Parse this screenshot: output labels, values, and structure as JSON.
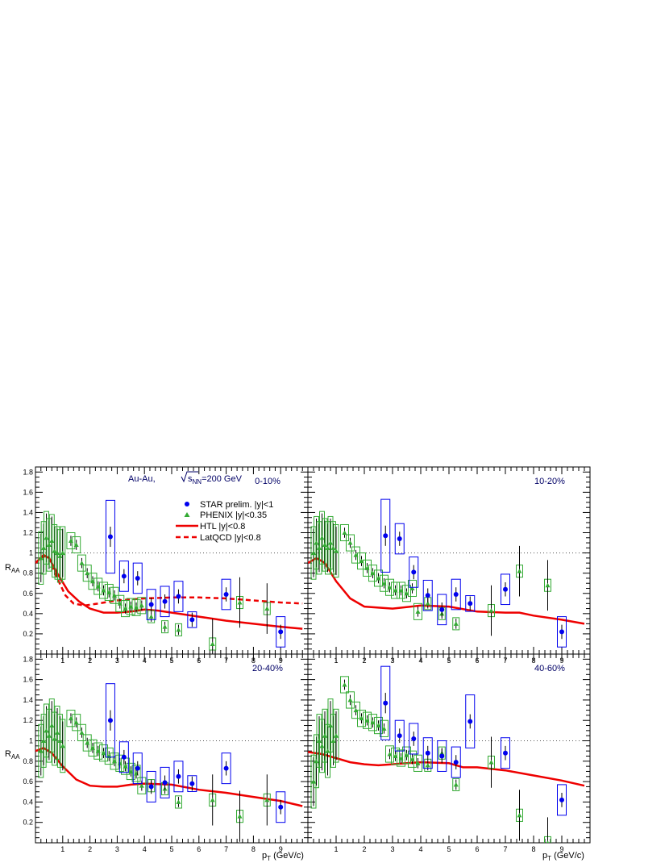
{
  "chart_data": {
    "type": "scatter",
    "title": "",
    "xlabel": "p",
    "xlabel_sub": "T",
    "xlabel_unit": " (GeV/c)",
    "ylabel": "R",
    "ylabel_sub": "AA",
    "xlim": [
      0,
      10
    ],
    "ylim": [
      0,
      1.85
    ],
    "x_ticks": [
      1,
      2,
      3,
      4,
      5,
      6,
      7,
      8,
      9
    ],
    "y_ticks": [
      0.2,
      0.4,
      0.6,
      0.8,
      1,
      1.2,
      1.4,
      1.6,
      1.8
    ],
    "reference_line": 1,
    "colors": {
      "star": "#0000ee",
      "phenix": "#33aa33",
      "theory": "#ee0000",
      "text": "#000066"
    },
    "annotation": {
      "system": "Au-Au, ",
      "sqrt": "s",
      "sqrt_sub": "NN",
      "energy": "=200 GeV"
    },
    "legend": {
      "placement": "top-right of first panel",
      "entries": [
        {
          "label": "STAR prelim. |y|<1",
          "marker": "circle"
        },
        {
          "label": "PHENIX |y|<0.35",
          "marker": "triangle"
        },
        {
          "label": "HTL |y|<0.8",
          "marker": "solid-line"
        },
        {
          "label": "LatQCD |y|<0.8",
          "marker": "dashed-line"
        }
      ]
    },
    "panels": [
      {
        "centrality": "0-10%",
        "star": [
          [
            2.75,
            1.16
          ],
          [
            3.25,
            0.77
          ],
          [
            3.75,
            0.75
          ],
          [
            4.25,
            0.49
          ],
          [
            4.75,
            0.52
          ],
          [
            5.25,
            0.57
          ],
          [
            5.75,
            0.34
          ],
          [
            7.0,
            0.59
          ],
          [
            9.0,
            0.22
          ]
        ],
        "phenix": [
          [
            0.2,
            0.95
          ],
          [
            0.3,
            1.05
          ],
          [
            0.4,
            1.15
          ],
          [
            0.5,
            1.08
          ],
          [
            0.6,
            1.12
          ],
          [
            0.7,
            1.02
          ],
          [
            0.8,
            1.0
          ],
          [
            0.9,
            0.97
          ],
          [
            1.0,
            1.0
          ],
          [
            1.3,
            1.12
          ],
          [
            1.5,
            1.08
          ],
          [
            1.7,
            0.9
          ],
          [
            1.9,
            0.8
          ],
          [
            2.1,
            0.72
          ],
          [
            2.3,
            0.67
          ],
          [
            2.5,
            0.63
          ],
          [
            2.7,
            0.61
          ],
          [
            2.9,
            0.58
          ],
          [
            3.1,
            0.5
          ],
          [
            3.3,
            0.45
          ],
          [
            3.5,
            0.47
          ],
          [
            3.7,
            0.46
          ],
          [
            3.9,
            0.48
          ],
          [
            4.25,
            0.37
          ],
          [
            4.75,
            0.27
          ],
          [
            5.25,
            0.24
          ],
          [
            6.5,
            0.1
          ],
          [
            7.5,
            0.51
          ],
          [
            8.5,
            0.45
          ]
        ],
        "htl": [
          [
            0,
            0.9
          ],
          [
            0.3,
            0.98
          ],
          [
            0.5,
            0.95
          ],
          [
            0.8,
            0.8
          ],
          [
            1.2,
            0.62
          ],
          [
            1.6,
            0.52
          ],
          [
            2.0,
            0.45
          ],
          [
            2.5,
            0.41
          ],
          [
            3.0,
            0.41
          ],
          [
            3.5,
            0.42
          ],
          [
            4.0,
            0.44
          ],
          [
            4.5,
            0.43
          ],
          [
            5.0,
            0.41
          ],
          [
            6.0,
            0.37
          ],
          [
            7.0,
            0.33
          ],
          [
            8.0,
            0.3
          ],
          [
            9.0,
            0.27
          ],
          [
            9.8,
            0.25
          ]
        ],
        "latqcd": [
          [
            0,
            0.9
          ],
          [
            0.3,
            0.97
          ],
          [
            0.5,
            0.95
          ],
          [
            0.8,
            0.75
          ],
          [
            1.1,
            0.58
          ],
          [
            1.4,
            0.5
          ],
          [
            1.8,
            0.48
          ],
          [
            2.3,
            0.5
          ],
          [
            3.0,
            0.53
          ],
          [
            4.0,
            0.55
          ],
          [
            5.0,
            0.56
          ],
          [
            6.0,
            0.56
          ],
          [
            7.0,
            0.55
          ],
          [
            8.0,
            0.53
          ],
          [
            9.0,
            0.51
          ],
          [
            9.8,
            0.5
          ]
        ]
      },
      {
        "centrality": "10-20%",
        "star": [
          [
            2.75,
            1.17
          ],
          [
            3.25,
            1.14
          ],
          [
            3.75,
            0.81
          ],
          [
            4.25,
            0.58
          ],
          [
            4.75,
            0.44
          ],
          [
            5.25,
            0.59
          ],
          [
            5.75,
            0.5
          ],
          [
            7.0,
            0.64
          ],
          [
            9.0,
            0.22
          ]
        ],
        "phenix": [
          [
            0.2,
            1.0
          ],
          [
            0.3,
            1.1
          ],
          [
            0.4,
            1.05
          ],
          [
            0.5,
            1.15
          ],
          [
            0.6,
            1.08
          ],
          [
            0.7,
            1.05
          ],
          [
            0.8,
            1.1
          ],
          [
            0.9,
            1.05
          ],
          [
            1.0,
            1.02
          ],
          [
            1.3,
            1.2
          ],
          [
            1.5,
            1.1
          ],
          [
            1.7,
            0.98
          ],
          [
            1.9,
            0.92
          ],
          [
            2.1,
            0.85
          ],
          [
            2.3,
            0.8
          ],
          [
            2.5,
            0.75
          ],
          [
            2.7,
            0.7
          ],
          [
            2.9,
            0.66
          ],
          [
            3.1,
            0.63
          ],
          [
            3.3,
            0.63
          ],
          [
            3.5,
            0.6
          ],
          [
            3.7,
            0.65
          ],
          [
            3.9,
            0.42
          ],
          [
            4.25,
            0.5
          ],
          [
            4.75,
            0.4
          ],
          [
            5.25,
            0.3
          ],
          [
            6.5,
            0.43
          ],
          [
            7.5,
            0.82
          ],
          [
            8.5,
            0.68
          ]
        ],
        "htl": [
          [
            0,
            0.9
          ],
          [
            0.3,
            0.95
          ],
          [
            0.6,
            0.9
          ],
          [
            1.0,
            0.72
          ],
          [
            1.5,
            0.55
          ],
          [
            2.0,
            0.47
          ],
          [
            3.0,
            0.45
          ],
          [
            4.0,
            0.48
          ],
          [
            5.0,
            0.47
          ],
          [
            6.0,
            0.42
          ],
          [
            7.0,
            0.41
          ],
          [
            7.5,
            0.41
          ],
          [
            8.0,
            0.38
          ],
          [
            9.0,
            0.34
          ],
          [
            9.8,
            0.3
          ]
        ]
      },
      {
        "centrality": "20-40%",
        "star": [
          [
            2.75,
            1.2
          ],
          [
            3.25,
            0.84
          ],
          [
            3.75,
            0.73
          ],
          [
            4.25,
            0.55
          ],
          [
            4.75,
            0.59
          ],
          [
            5.25,
            0.65
          ],
          [
            5.75,
            0.58
          ],
          [
            7.0,
            0.73
          ],
          [
            9.0,
            0.35
          ]
        ],
        "phenix": [
          [
            0.2,
            0.9
          ],
          [
            0.3,
            1.0
          ],
          [
            0.4,
            1.1
          ],
          [
            0.5,
            1.05
          ],
          [
            0.6,
            1.15
          ],
          [
            0.7,
            1.02
          ],
          [
            0.8,
            1.08
          ],
          [
            0.9,
            1.0
          ],
          [
            1.0,
            0.95
          ],
          [
            1.3,
            1.22
          ],
          [
            1.5,
            1.18
          ],
          [
            1.7,
            1.08
          ],
          [
            1.9,
            0.98
          ],
          [
            2.1,
            0.93
          ],
          [
            2.3,
            0.9
          ],
          [
            2.5,
            0.88
          ],
          [
            2.7,
            0.85
          ],
          [
            2.9,
            0.8
          ],
          [
            3.1,
            0.78
          ],
          [
            3.3,
            0.75
          ],
          [
            3.5,
            0.7
          ],
          [
            3.7,
            0.68
          ],
          [
            3.9,
            0.56
          ],
          [
            4.25,
            0.56
          ],
          [
            4.75,
            0.53
          ],
          [
            5.25,
            0.4
          ],
          [
            6.5,
            0.42
          ],
          [
            7.5,
            0.26
          ],
          [
            8.5,
            0.42
          ]
        ],
        "htl": [
          [
            0,
            0.9
          ],
          [
            0.3,
            0.93
          ],
          [
            0.6,
            0.88
          ],
          [
            1.0,
            0.75
          ],
          [
            1.5,
            0.62
          ],
          [
            2.0,
            0.56
          ],
          [
            2.5,
            0.55
          ],
          [
            3.0,
            0.55
          ],
          [
            3.5,
            0.57
          ],
          [
            4.0,
            0.58
          ],
          [
            5.0,
            0.57
          ],
          [
            6.0,
            0.52
          ],
          [
            7.0,
            0.49
          ],
          [
            8.0,
            0.45
          ],
          [
            9.0,
            0.41
          ],
          [
            9.8,
            0.36
          ]
        ]
      },
      {
        "centrality": "40-60%",
        "star": [
          [
            2.75,
            1.37
          ],
          [
            3.25,
            1.05
          ],
          [
            3.75,
            1.02
          ],
          [
            4.25,
            0.88
          ],
          [
            4.75,
            0.85
          ],
          [
            5.25,
            0.79
          ],
          [
            5.75,
            1.19
          ],
          [
            7.0,
            0.88
          ],
          [
            9.0,
            0.42
          ]
        ],
        "phenix": [
          [
            0.2,
            0.6
          ],
          [
            0.3,
            0.8
          ],
          [
            0.4,
            1.0
          ],
          [
            0.5,
            0.95
          ],
          [
            0.6,
            1.05
          ],
          [
            0.7,
            0.9
          ],
          [
            0.8,
            1.15
          ],
          [
            0.9,
            1.0
          ],
          [
            1.0,
            1.05
          ],
          [
            1.3,
            1.55
          ],
          [
            1.5,
            1.4
          ],
          [
            1.7,
            1.3
          ],
          [
            1.9,
            1.22
          ],
          [
            2.1,
            1.2
          ],
          [
            2.3,
            1.18
          ],
          [
            2.5,
            1.15
          ],
          [
            2.7,
            1.12
          ],
          [
            2.9,
            0.87
          ],
          [
            3.1,
            0.85
          ],
          [
            3.3,
            0.83
          ],
          [
            3.5,
            0.86
          ],
          [
            3.7,
            0.82
          ],
          [
            3.9,
            0.78
          ],
          [
            4.25,
            0.76
          ],
          [
            4.75,
            0.88
          ],
          [
            5.25,
            0.57
          ],
          [
            6.5,
            0.79
          ],
          [
            7.5,
            0.27
          ],
          [
            8.5,
            0.0
          ]
        ],
        "htl": [
          [
            0,
            0.89
          ],
          [
            0.5,
            0.87
          ],
          [
            1.0,
            0.83
          ],
          [
            1.5,
            0.79
          ],
          [
            2.0,
            0.77
          ],
          [
            2.5,
            0.76
          ],
          [
            3.0,
            0.77
          ],
          [
            3.5,
            0.78
          ],
          [
            4.0,
            0.79
          ],
          [
            5.0,
            0.78
          ],
          [
            5.5,
            0.74
          ],
          [
            6.0,
            0.74
          ],
          [
            7.0,
            0.71
          ],
          [
            8.0,
            0.66
          ],
          [
            9.0,
            0.61
          ],
          [
            9.8,
            0.56
          ]
        ]
      }
    ]
  }
}
